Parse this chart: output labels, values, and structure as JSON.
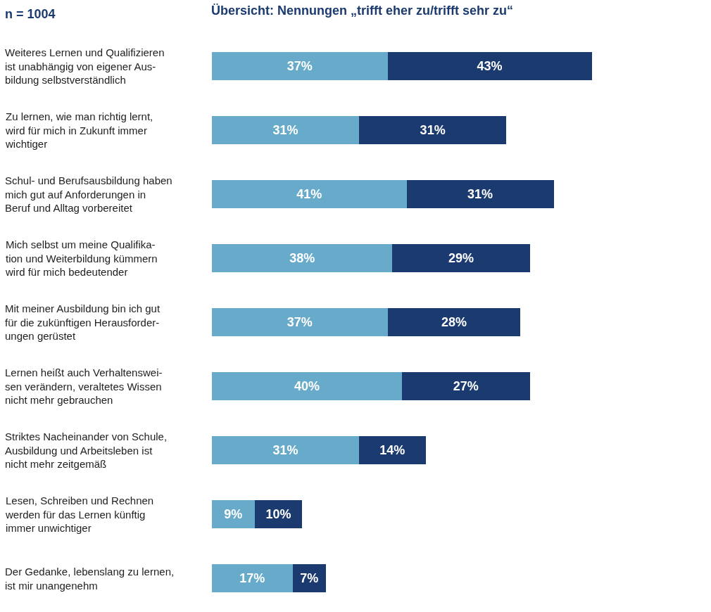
{
  "chart_data": {
    "type": "bar",
    "orientation": "horizontal",
    "stacked": true,
    "title": "Übersicht: Nennungen „trifft eher zu/trifft sehr zu“",
    "annotations": [
      "n = 1004"
    ],
    "categories": [
      "Weiteres Lernen und Qualifizieren\nist unabhängig von eigener Aus-\nbildung selbstverständlich",
      "Zu lernen, wie man richtig lernt,\nwird für mich in Zukunft immer\nwichtiger",
      "Schul- und Berufsausbildung haben\nmich gut auf Anforderungen in\nBeruf und Alltag vorbereitet",
      "Mich selbst um meine Qualifika-\ntion und Weiterbildung kümmern\nwird für mich bedeutender",
      "Mit meiner Ausbildung bin ich gut\nfür die zukünftigen Herausforder-\nungen gerüstet",
      "Lernen heißt auch Verhaltenswei-\nsen verändern, veraltetes Wissen\nnicht mehr gebrauchen",
      "Striktes Nacheinander von Schule,\nAusbildung und Arbeitsleben ist\nnicht mehr zeitgemäß",
      "Lesen, Schreiben und Rechnen\nwerden für das Lernen künftig\nimmer unwichtiger",
      "Der Gedanke, lebenslang zu lernen,\nist mir unangenehm"
    ],
    "series": [
      {
        "color": "#67aac9",
        "values": [
          37,
          31,
          41,
          38,
          37,
          40,
          31,
          9,
          17
        ],
        "value_labels": [
          "37%",
          "31%",
          "41%",
          "38%",
          "37%",
          "40%",
          "31%",
          "9%",
          "17%"
        ]
      },
      {
        "color": "#1b3b70",
        "values": [
          43,
          31,
          31,
          29,
          28,
          27,
          14,
          10,
          7
        ],
        "value_labels": [
          "43%",
          "31%",
          "31%",
          "29%",
          "28%",
          "27%",
          "14%",
          "10%",
          "7%"
        ]
      }
    ],
    "data_labels": false
  }
}
